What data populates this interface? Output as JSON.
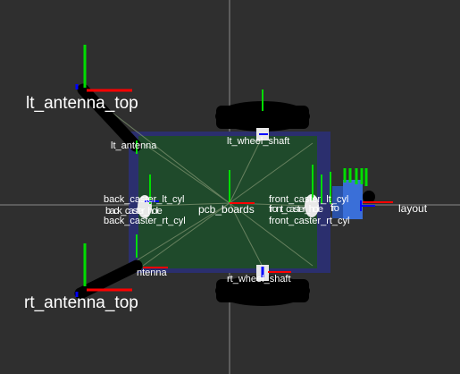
{
  "viewer": {
    "background_color": "#2f2f2f",
    "grid_color": "#8a8a8a"
  },
  "frames": {
    "lt_antenna_top": "lt_antenna_top",
    "rt_antenna_top": "rt_antenna_top",
    "lt_antenna": "lt_antenna",
    "rt_antenna_partial": "ntenna",
    "lt_wheel_shaft": "lt_wheel_shaft",
    "rt_wheel_shaft": "rt_wheel_shaft",
    "back_caster_lt_cyl": "back_caster_lt_cyl",
    "back_caster_hole": "back_caster_hole",
    "back_caster_rt_cyl": "back_caster_rt_cyl",
    "pcb_boards": "pcb_boards",
    "front_caster_lt_cyl": "front_caster_lt_cyl",
    "front_caster_rt_cyl": "front_caster_rt_cyl",
    "front_caster_hole": "front_caster_hole",
    "front_overlap": "fro",
    "layout": "layout"
  },
  "colors": {
    "board": "#1f4a2b",
    "board_border": "#2b2f6e",
    "wheel": "#000000",
    "axis_x": "#ff0000",
    "axis_y": "#00dd00",
    "axis_z": "#0000ff",
    "sensor": "#3a6fd8"
  }
}
